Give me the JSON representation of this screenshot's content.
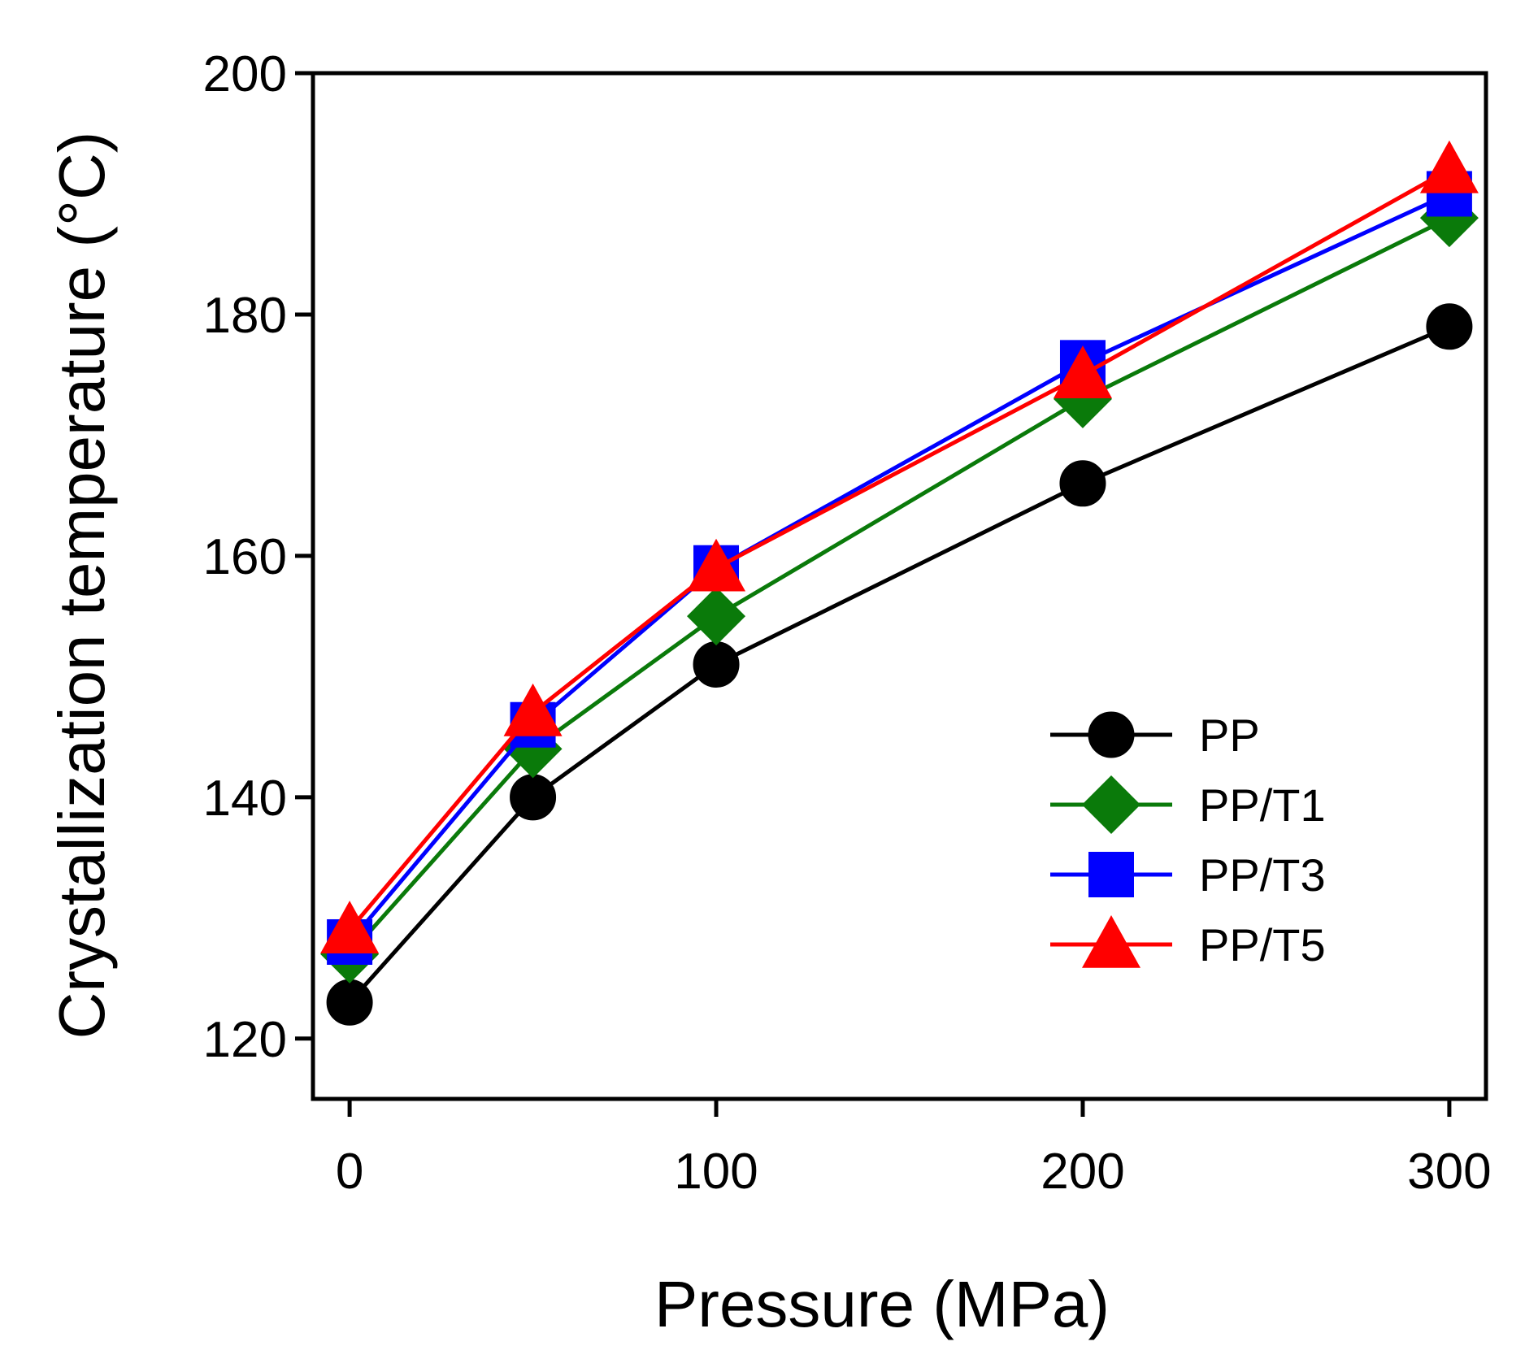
{
  "chart_data": {
    "type": "line",
    "title": "",
    "xlabel": "Pressure (MPa)",
    "ylabel": "Crystallization temperature (°C)",
    "xlim": [
      -10,
      310
    ],
    "ylim": [
      115,
      200
    ],
    "xticks": [
      0,
      100,
      200,
      300
    ],
    "yticks": [
      120,
      140,
      160,
      180,
      200
    ],
    "x": [
      0,
      50,
      100,
      200,
      300
    ],
    "grid": false,
    "legend_position": "lower-right",
    "series": [
      {
        "name": "PP",
        "color": "#000000",
        "marker": "circle",
        "values": [
          123,
          140,
          151,
          166,
          179
        ]
      },
      {
        "name": "PP/T1",
        "color": "#0a7a0a",
        "marker": "diamond",
        "values": [
          127,
          144,
          155,
          173,
          188
        ]
      },
      {
        "name": "PP/T3",
        "color": "#0000ff",
        "marker": "square",
        "values": [
          128,
          146,
          159,
          176,
          190
        ]
      },
      {
        "name": "PP/T5",
        "color": "#ff0000",
        "marker": "triangle",
        "values": [
          129,
          147,
          159,
          175,
          192
        ]
      }
    ]
  }
}
